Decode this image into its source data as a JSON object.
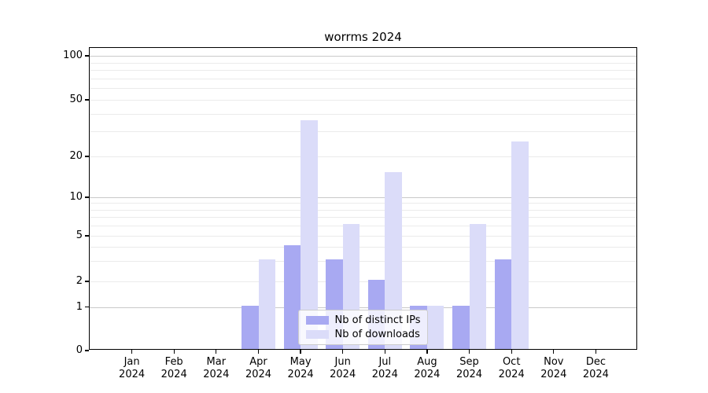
{
  "chart_data": {
    "type": "bar",
    "title": "worrms 2024",
    "categories": [
      "Jan",
      "Feb",
      "Mar",
      "Apr",
      "May",
      "Jun",
      "Jul",
      "Aug",
      "Sep",
      "Oct",
      "Nov",
      "Dec"
    ],
    "category_sublabel": "2024",
    "series": [
      {
        "name": "Nb of distinct IPs",
        "color": "#a8a9f2",
        "values": [
          0,
          0,
          0,
          1,
          4,
          3,
          2,
          1,
          1,
          3,
          0,
          0
        ]
      },
      {
        "name": "Nb of downloads",
        "color": "#dbdcf9",
        "values": [
          0,
          0,
          0,
          3,
          35,
          6,
          15,
          1,
          6,
          25,
          0,
          0
        ]
      }
    ],
    "y_ticks": [
      0,
      1,
      2,
      5,
      10,
      20,
      50,
      100
    ],
    "ylim": [
      0,
      100
    ],
    "yscale": "quasi-log",
    "grid": {
      "major_lines": [
        1,
        10,
        100
      ],
      "minor_lines": [
        2,
        3,
        4,
        5,
        6,
        7,
        8,
        9,
        20,
        30,
        40,
        50,
        60,
        70,
        80,
        90
      ]
    },
    "legend_position": "lower center"
  },
  "colors": {
    "background": "#ffffff",
    "axis": "#000000",
    "grid_major": "#c9c9c9",
    "grid_minor": "#ebebeb",
    "legend_border": "#cccccc"
  }
}
